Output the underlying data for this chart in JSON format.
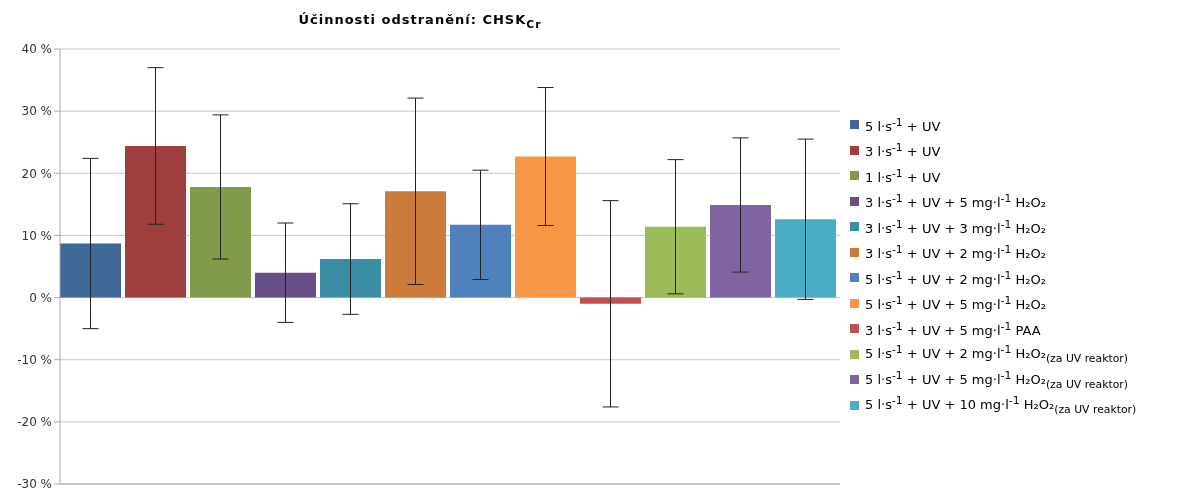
{
  "chart_data": {
    "type": "bar",
    "title": "Účinnosti odstranění: CHSK$_{Cr}$",
    "categories": [
      null
    ],
    "ylim": [
      -30,
      40
    ],
    "yticks": [
      {
        "value": -30,
        "label": "-30 %"
      },
      {
        "value": -20,
        "label": "-20 %"
      },
      {
        "value": -10,
        "label": "-10 %"
      },
      {
        "value": 0,
        "label": "0 %"
      },
      {
        "value": 10,
        "label": "10 %"
      },
      {
        "value": 20,
        "label": "20 %"
      },
      {
        "value": 30,
        "label": "30 %"
      },
      {
        "value": 40,
        "label": "40 %"
      }
    ],
    "grid": "y",
    "legend": "right",
    "series": [
      {
        "name": "5 l·s$^{-1}$ + UV",
        "color": "#3f6797",
        "values": [
          8.7
        ],
        "errors": [
          13.7
        ]
      },
      {
        "name": "3 l·s$^{-1}$ + UV",
        "color": "#9e3f3e",
        "values": [
          24.4
        ],
        "errors": [
          12.6
        ]
      },
      {
        "name": "1 l·s$^{-1}$ + UV",
        "color": "#819b4a",
        "values": [
          17.8
        ],
        "errors": [
          11.6
        ]
      },
      {
        "name": "3 l·s$^{-1}$ + UV + 5 mg·l$^{-1}$ H₂O₂",
        "color": "#694f86",
        "values": [
          4.0
        ],
        "errors": [
          8.0
        ]
      },
      {
        "name": "3 l·s$^{-1}$ + UV + 3 mg·l$^{-1}$ H₂O₂",
        "color": "#3b8da3",
        "values": [
          6.2
        ],
        "errors": [
          8.9
        ]
      },
      {
        "name": "3 l·s$^{-1}$ + UV + 2 mg·l$^{-1}$ H₂O₂",
        "color": "#cc7b3a",
        "values": [
          17.1
        ],
        "errors": [
          15.0
        ]
      },
      {
        "name": "5 l·s$^{-1}$ + UV + 2 mg·l$^{-1}$ H₂O₂",
        "color": "#4f81bd",
        "values": [
          11.7
        ],
        "errors": [
          8.8
        ]
      },
      {
        "name": "5 l·s$^{-1}$ + UV + 5 mg·l$^{-1}$ H₂O₂",
        "color": "#f79646",
        "values": [
          22.7
        ],
        "errors": [
          11.1
        ]
      },
      {
        "name": "3 l·s$^{-1}$ + UV + 5 mg·l$^{-1}$ PAA",
        "color": "#c0504d",
        "values": [
          -1.0
        ],
        "errors": [
          16.6
        ]
      },
      {
        "name": "5 l·s$^{-1}$ + UV + 2 mg·l$^{-1}$ H₂O₂$_{(za UV reaktor)}$",
        "color": "#9bbb59",
        "values": [
          11.4
        ],
        "errors": [
          10.8
        ]
      },
      {
        "name": "5 l·s$^{-1}$ + UV + 5 mg·l$^{-1}$ H₂O₂$_{(za UV reaktor)}$",
        "color": "#8064a2",
        "values": [
          14.9
        ],
        "errors": [
          10.8
        ]
      },
      {
        "name": "5 l·s$^{-1}$ + UV + 10 mg·l$^{-1}$ H₂O₂$_{(za UV reaktor)}$",
        "color": "#4bacc6",
        "values": [
          12.6
        ],
        "errors": [
          12.9
        ]
      }
    ]
  }
}
